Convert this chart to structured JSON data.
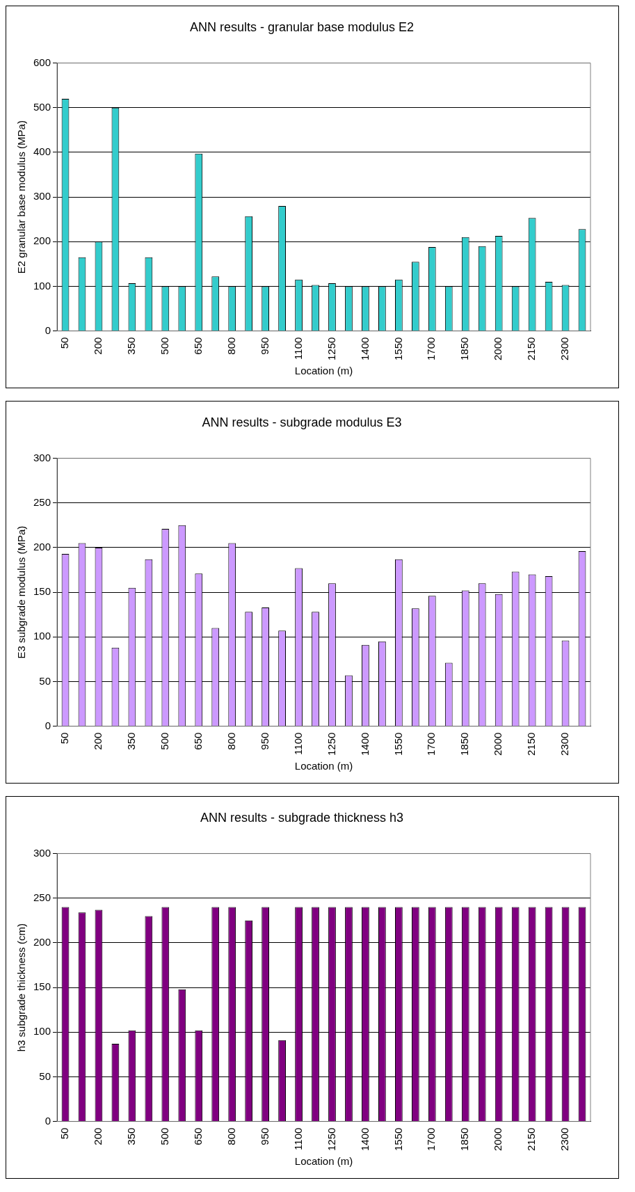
{
  "chart_data": [
    {
      "type": "bar",
      "title": "ANN results - granular base modulus E2",
      "xlabel": "Location (m)",
      "ylabel": "E2 granular base modulus (MPa)",
      "categories": [
        "50",
        null,
        "200",
        null,
        "350",
        null,
        "500",
        null,
        "650",
        null,
        "800",
        null,
        "950",
        null,
        "1100",
        null,
        "1250",
        null,
        "1400",
        null,
        "1550",
        null,
        "1700",
        null,
        "1850",
        null,
        "2000",
        null,
        "2150",
        null,
        "2300",
        null
      ],
      "values": [
        520,
        165,
        200,
        500,
        107,
        165,
        100,
        100,
        397,
        122,
        100,
        257,
        100,
        280,
        115,
        103,
        107,
        100,
        100,
        100,
        115,
        155,
        188,
        100,
        210,
        190,
        213,
        100,
        253,
        110,
        103,
        228
      ],
      "color": "#33cccc",
      "ylim": [
        0,
        600
      ],
      "yticks": [
        0,
        100,
        200,
        300,
        400,
        500,
        600
      ],
      "grid": "y",
      "legend": false
    },
    {
      "type": "bar",
      "title": "ANN results - subgrade modulus E3",
      "xlabel": "Location (m)",
      "ylabel": "E3 subgrade modulus (MPa)",
      "categories": [
        "50",
        null,
        "200",
        null,
        "350",
        null,
        "500",
        null,
        "650",
        null,
        "800",
        null,
        "950",
        null,
        "1100",
        null,
        "1250",
        null,
        "1400",
        null,
        "1550",
        null,
        "1700",
        null,
        "1850",
        null,
        "2000",
        null,
        "2150",
        null,
        "2300",
        null
      ],
      "values": [
        193,
        205,
        200,
        88,
        155,
        187,
        221,
        225,
        171,
        110,
        205,
        128,
        133,
        107,
        177,
        128,
        160,
        57,
        91,
        95,
        187,
        132,
        146,
        71,
        152,
        160,
        148,
        173,
        170,
        168,
        96,
        196
      ],
      "color": "#cc99ff",
      "ylim": [
        0,
        300
      ],
      "yticks": [
        0,
        50,
        100,
        150,
        200,
        250,
        300
      ],
      "grid": "y",
      "legend": false
    },
    {
      "type": "bar",
      "title": "ANN results - subgrade thickness h3",
      "xlabel": "Location (m)",
      "ylabel": "h3 subgrade thickness (cm)",
      "categories": [
        "50",
        null,
        "200",
        null,
        "350",
        null,
        "500",
        null,
        "650",
        null,
        "800",
        null,
        "950",
        null,
        "1100",
        null,
        "1250",
        null,
        "1400",
        null,
        "1550",
        null,
        "1700",
        null,
        "1850",
        null,
        "2000",
        null,
        "2150",
        null,
        "2300",
        null
      ],
      "values": [
        240,
        234,
        237,
        87,
        102,
        230,
        240,
        148,
        102,
        240,
        240,
        225,
        240,
        91,
        240,
        240,
        240,
        240,
        240,
        240,
        240,
        240,
        240,
        240,
        240,
        240,
        240,
        240,
        240,
        240,
        240,
        240
      ],
      "color": "#800080",
      "ylim": [
        0,
        300
      ],
      "yticks": [
        0,
        50,
        100,
        150,
        200,
        250,
        300
      ],
      "grid": "y",
      "legend": false
    }
  ]
}
